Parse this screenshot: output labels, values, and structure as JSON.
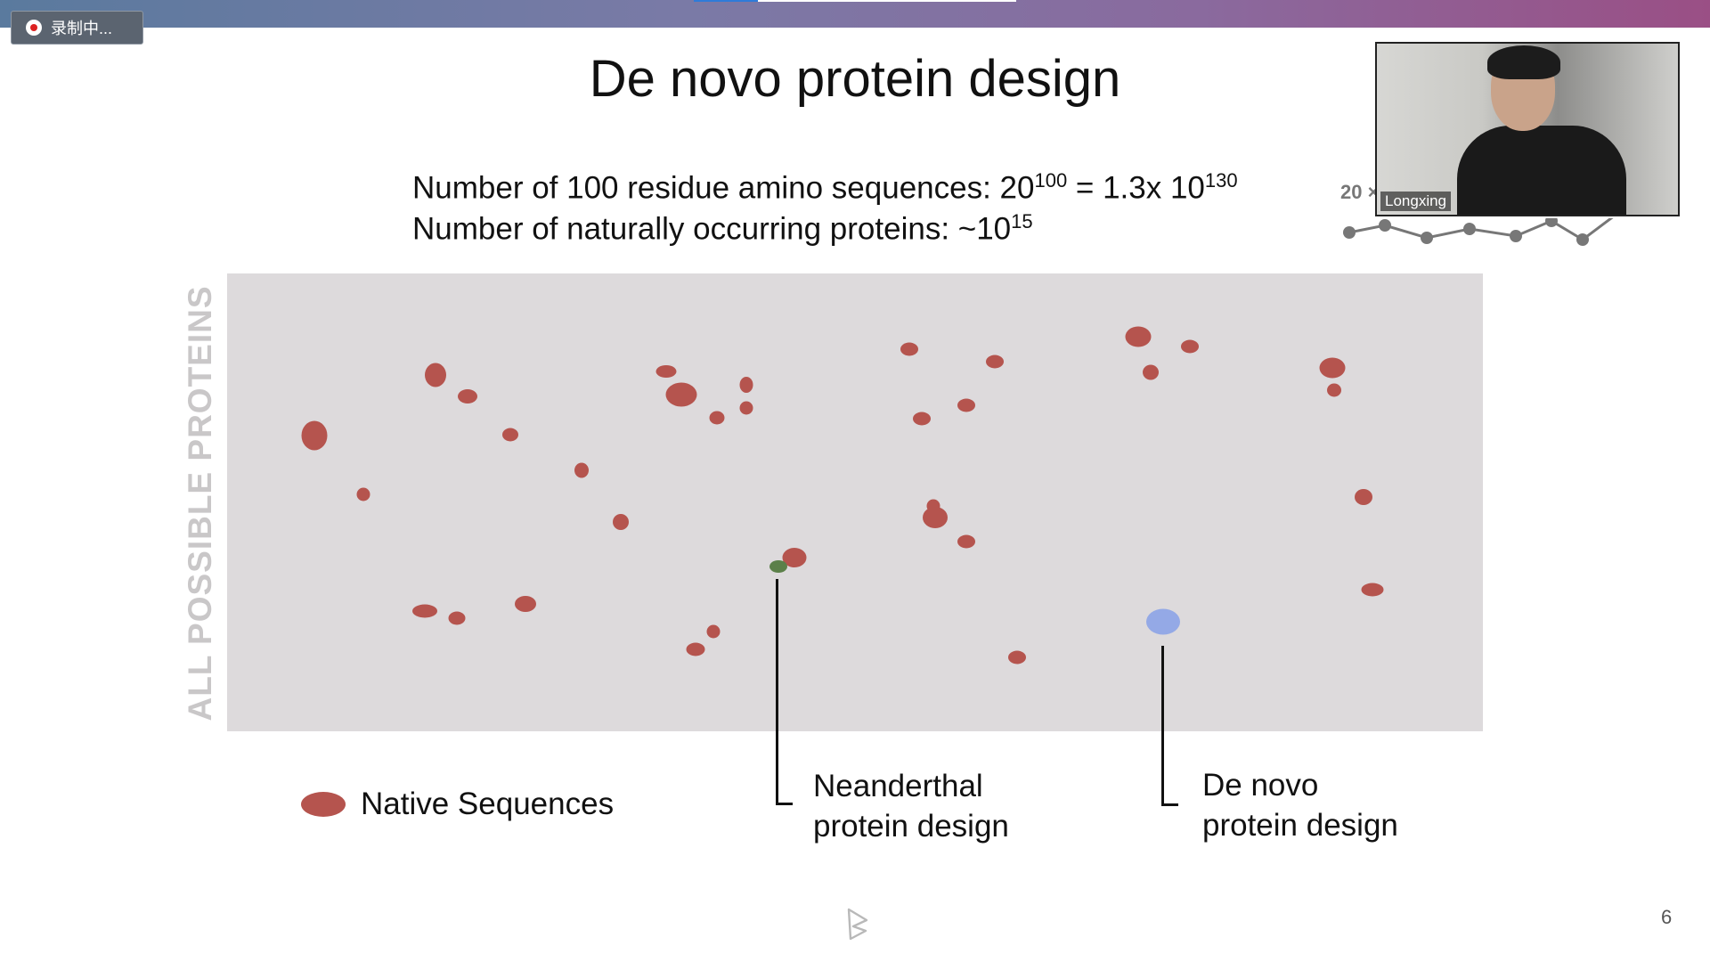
{
  "recording": {
    "label": "录制中..."
  },
  "slide": {
    "title": "De novo protein design",
    "line1": {
      "text": "Number of 100 residue amino sequences: 20",
      "exp1": "100",
      "mid": " = 1.3x 10",
      "exp2": "130"
    },
    "line2": {
      "text": "Number of naturally occurring proteins: ~10",
      "exp": "15"
    },
    "axis_label": "ALL POSSIBLE PROTEINS",
    "legend": {
      "native": "Native Sequences",
      "neanderthal_line1": "Neanderthal",
      "neanderthal_line2": "protein design",
      "denovo_line1": "De novo",
      "denovo_line2": "protein design"
    },
    "page_number": "6",
    "partially_hidden_text": "20 ×"
  },
  "video": {
    "participant_name": "Longxing"
  },
  "colors": {
    "native": "#b5544e",
    "neanderthal": "#5b8049",
    "denovo": "#94a9e6",
    "plot_bg": "#dddadc"
  }
}
